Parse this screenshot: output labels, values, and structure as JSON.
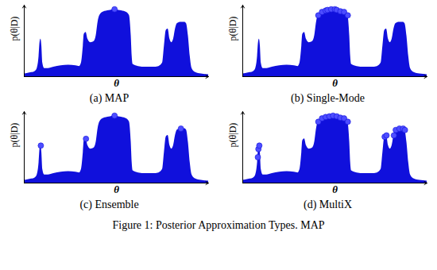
{
  "chart_data": [
    {
      "type": "area",
      "caption": "(a) MAP",
      "xlabel": "θ",
      "ylabel": "p(θ|D)",
      "xlim": [
        0,
        100
      ],
      "ylim": [
        0,
        1.05
      ],
      "tick_labels": false,
      "grid": false,
      "x": [
        0,
        2,
        4,
        6,
        7,
        8,
        8.5,
        9,
        9.5,
        10,
        11,
        13,
        16,
        20,
        24,
        28,
        30,
        31,
        32,
        32.5,
        33.5,
        34.5,
        36,
        38,
        39,
        40,
        41,
        43,
        46,
        49,
        52,
        55,
        57,
        58,
        58.5,
        59,
        62,
        66,
        70,
        73,
        75,
        76,
        77,
        78,
        79,
        80,
        81,
        82,
        83,
        85,
        87,
        88,
        89,
        90,
        91,
        93,
        96,
        100
      ],
      "series": [
        {
          "type": "area",
          "color": "#1010dc",
          "values": [
            0.04,
            0.05,
            0.06,
            0.08,
            0.12,
            0.3,
            0.5,
            0.55,
            0.45,
            0.2,
            0.12,
            0.12,
            0.14,
            0.16,
            0.17,
            0.16,
            0.15,
            0.2,
            0.45,
            0.62,
            0.65,
            0.55,
            0.5,
            0.52,
            0.6,
            0.8,
            0.9,
            0.95,
            0.97,
            0.99,
            0.97,
            0.95,
            0.9,
            0.6,
            0.3,
            0.18,
            0.15,
            0.14,
            0.14,
            0.15,
            0.2,
            0.45,
            0.68,
            0.7,
            0.55,
            0.5,
            0.55,
            0.7,
            0.78,
            0.8,
            0.8,
            0.78,
            0.6,
            0.3,
            0.12,
            0.06,
            0.04,
            0.03
          ]
        },
        {
          "type": "scatter",
          "color": "#4d4dff",
          "x": [
            49
          ],
          "values": [
            0.99
          ]
        }
      ]
    },
    {
      "type": "area",
      "caption": "(b) Single-Mode",
      "xlabel": "θ",
      "ylabel": "p(θ|D)",
      "xlim": [
        0,
        100
      ],
      "ylim": [
        0,
        1.05
      ],
      "tick_labels": false,
      "grid": false,
      "x": [
        0,
        2,
        4,
        6,
        7,
        8,
        8.5,
        9,
        9.5,
        10,
        11,
        13,
        16,
        20,
        24,
        28,
        30,
        31,
        32,
        32.5,
        33.5,
        34.5,
        36,
        38,
        39,
        40,
        41,
        43,
        46,
        49,
        52,
        55,
        57,
        58,
        58.5,
        59,
        62,
        66,
        70,
        73,
        75,
        76,
        77,
        78,
        79,
        80,
        81,
        82,
        83,
        85,
        87,
        88,
        89,
        90,
        91,
        93,
        96,
        100
      ],
      "series": [
        {
          "type": "area",
          "color": "#1010dc",
          "values": [
            0.04,
            0.05,
            0.06,
            0.08,
            0.12,
            0.3,
            0.5,
            0.55,
            0.45,
            0.2,
            0.12,
            0.12,
            0.14,
            0.16,
            0.17,
            0.16,
            0.15,
            0.2,
            0.45,
            0.62,
            0.65,
            0.55,
            0.5,
            0.52,
            0.6,
            0.8,
            0.9,
            0.95,
            0.97,
            0.99,
            0.97,
            0.95,
            0.9,
            0.6,
            0.3,
            0.18,
            0.15,
            0.14,
            0.14,
            0.15,
            0.2,
            0.45,
            0.68,
            0.7,
            0.55,
            0.5,
            0.55,
            0.7,
            0.78,
            0.8,
            0.8,
            0.78,
            0.6,
            0.3,
            0.12,
            0.06,
            0.04,
            0.03
          ]
        },
        {
          "type": "scatter",
          "color": "#4d4dff",
          "x": [
            41,
            43,
            45,
            46,
            48,
            50,
            51,
            53,
            55,
            57
          ],
          "values": [
            0.9,
            0.95,
            0.97,
            0.98,
            0.99,
            0.99,
            0.98,
            0.96,
            0.95,
            0.9
          ]
        }
      ]
    },
    {
      "type": "area",
      "caption": "(c) Ensemble",
      "xlabel": "θ",
      "ylabel": "p(θ|D)",
      "xlim": [
        0,
        100
      ],
      "ylim": [
        0,
        1.05
      ],
      "tick_labels": false,
      "grid": false,
      "x": [
        0,
        2,
        4,
        6,
        7,
        8,
        8.5,
        9,
        9.5,
        10,
        11,
        13,
        16,
        20,
        24,
        28,
        30,
        31,
        32,
        32.5,
        33.5,
        34.5,
        36,
        38,
        39,
        40,
        41,
        43,
        46,
        49,
        52,
        55,
        57,
        58,
        58.5,
        59,
        62,
        66,
        70,
        73,
        75,
        76,
        77,
        78,
        79,
        80,
        81,
        82,
        83,
        85,
        87,
        88,
        89,
        90,
        91,
        93,
        96,
        100
      ],
      "series": [
        {
          "type": "area",
          "color": "#1010dc",
          "values": [
            0.04,
            0.05,
            0.06,
            0.08,
            0.12,
            0.3,
            0.5,
            0.55,
            0.45,
            0.2,
            0.12,
            0.12,
            0.14,
            0.16,
            0.17,
            0.16,
            0.15,
            0.2,
            0.45,
            0.62,
            0.65,
            0.55,
            0.5,
            0.52,
            0.6,
            0.8,
            0.9,
            0.95,
            0.97,
            0.99,
            0.97,
            0.95,
            0.9,
            0.6,
            0.3,
            0.18,
            0.15,
            0.14,
            0.14,
            0.15,
            0.2,
            0.45,
            0.68,
            0.7,
            0.55,
            0.5,
            0.55,
            0.7,
            0.78,
            0.8,
            0.8,
            0.78,
            0.6,
            0.3,
            0.12,
            0.06,
            0.04,
            0.03
          ]
        },
        {
          "type": "scatter",
          "color": "#4d4dff",
          "x": [
            9,
            33.5,
            49,
            85
          ],
          "values": [
            0.55,
            0.65,
            0.99,
            0.8
          ]
        }
      ]
    },
    {
      "type": "area",
      "caption": "(d) MultiX",
      "xlabel": "θ",
      "ylabel": "p(θ|D)",
      "xlim": [
        0,
        100
      ],
      "ylim": [
        0,
        1.05
      ],
      "tick_labels": false,
      "grid": false,
      "x": [
        0,
        2,
        4,
        6,
        7,
        8,
        8.5,
        9,
        9.5,
        10,
        11,
        13,
        16,
        20,
        24,
        28,
        30,
        31,
        32,
        32.5,
        33.5,
        34.5,
        36,
        38,
        39,
        40,
        41,
        43,
        46,
        49,
        52,
        55,
        57,
        58,
        58.5,
        59,
        62,
        66,
        70,
        73,
        75,
        76,
        77,
        78,
        79,
        80,
        81,
        82,
        83,
        85,
        87,
        88,
        89,
        90,
        91,
        93,
        96,
        100
      ],
      "series": [
        {
          "type": "area",
          "color": "#1010dc",
          "values": [
            0.04,
            0.05,
            0.06,
            0.08,
            0.12,
            0.3,
            0.5,
            0.55,
            0.45,
            0.2,
            0.12,
            0.12,
            0.14,
            0.16,
            0.17,
            0.16,
            0.15,
            0.2,
            0.45,
            0.62,
            0.65,
            0.55,
            0.5,
            0.52,
            0.6,
            0.8,
            0.9,
            0.95,
            0.97,
            0.99,
            0.97,
            0.95,
            0.9,
            0.6,
            0.3,
            0.18,
            0.15,
            0.14,
            0.14,
            0.15,
            0.2,
            0.45,
            0.68,
            0.7,
            0.55,
            0.5,
            0.55,
            0.7,
            0.78,
            0.8,
            0.8,
            0.78,
            0.6,
            0.3,
            0.12,
            0.06,
            0.04,
            0.03
          ]
        },
        {
          "type": "scatter",
          "color": "#4d4dff",
          "x": [
            8.2,
            8.5,
            9,
            41,
            43,
            45,
            47,
            49,
            51,
            53,
            55,
            57,
            77,
            78,
            82,
            83,
            85,
            87,
            88
          ],
          "values": [
            0.38,
            0.5,
            0.55,
            0.9,
            0.95,
            0.97,
            0.98,
            0.99,
            0.98,
            0.96,
            0.95,
            0.9,
            0.68,
            0.7,
            0.7,
            0.78,
            0.8,
            0.8,
            0.78
          ]
        }
      ]
    }
  ],
  "caption": "Figure 1: Posterior Approximation Types. MAP"
}
